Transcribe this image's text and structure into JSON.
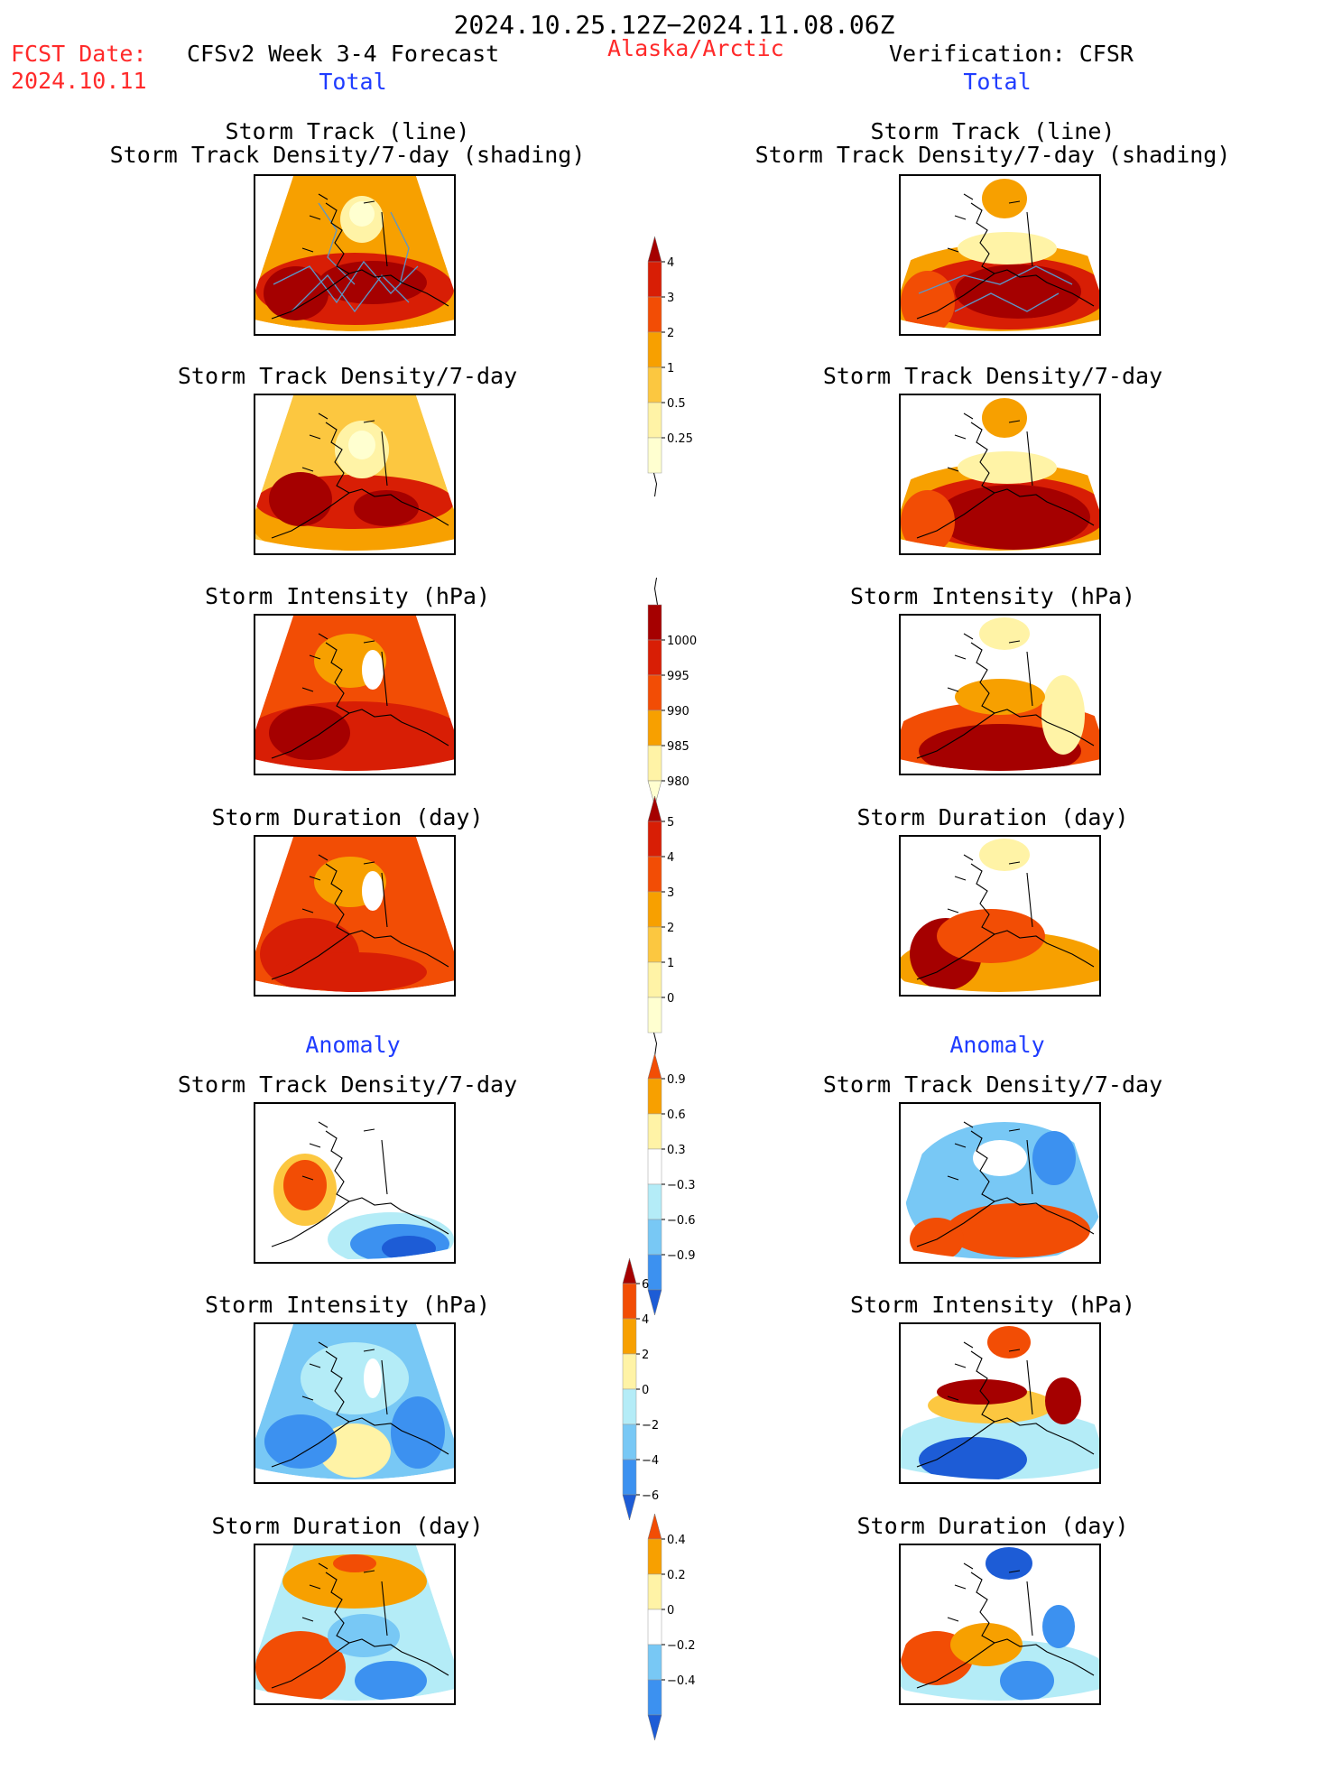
{
  "header": {
    "date_range": "2024.10.25.12Z−2024.11.08.06Z",
    "fcst_label": "FCST Date:",
    "fcst_date": "2024.10.11",
    "model_title": "CFSv2 Week 3-4 Forecast",
    "region": "Alaska/Arctic",
    "verification": "Verification: CFSR"
  },
  "sections": {
    "total_left": "Total",
    "total_right": "Total",
    "anomaly_left": "Anomaly",
    "anomaly_right": "Anomaly"
  },
  "panels": {
    "track_line_1": "Storm Track (line)",
    "track_line_2": "Storm Track Density/7-day (shading)",
    "density": "Storm Track Density/7-day",
    "intensity": "Storm Intensity (hPa)",
    "duration": "Storm Duration (day)"
  },
  "colors": {
    "dark_red": "#a50000",
    "red": "#d81e05",
    "red_orange": "#f24d05",
    "orange": "#f7a000",
    "light_orange": "#fcc740",
    "yellow": "#fff3a6",
    "light_yellow": "#ffffd0",
    "white": "#ffffff",
    "light_blue": "#b4ecf7",
    "sky_blue": "#78c8f5",
    "blue": "#3c91f0",
    "dark_blue": "#1d5cd6",
    "track_line": "#5b96c8"
  },
  "chart_data": [
    {
      "type": "heatmap",
      "name": "colorbar-density",
      "ticks": [
        "0.25",
        "0.5",
        "1",
        "2",
        "3",
        "4"
      ]
    },
    {
      "type": "heatmap",
      "name": "colorbar-intensity",
      "ticks": [
        "1000",
        "995",
        "990",
        "985",
        "980"
      ]
    },
    {
      "type": "heatmap",
      "name": "colorbar-duration",
      "ticks": [
        "0",
        "1",
        "2",
        "3",
        "4",
        "5"
      ]
    },
    {
      "type": "heatmap",
      "name": "colorbar-density-anomaly",
      "ticks": [
        "0.9",
        "0.6",
        "0.3",
        "−0.3",
        "−0.6",
        "−0.9"
      ]
    },
    {
      "type": "heatmap",
      "name": "colorbar-intensity-anomaly",
      "ticks": [
        "6",
        "4",
        "2",
        "0",
        "−2",
        "−4",
        "−6"
      ]
    },
    {
      "type": "heatmap",
      "name": "colorbar-duration-anomaly",
      "ticks": [
        "0.4",
        "0.2",
        "0",
        "−0.2",
        "−0.4"
      ]
    }
  ]
}
